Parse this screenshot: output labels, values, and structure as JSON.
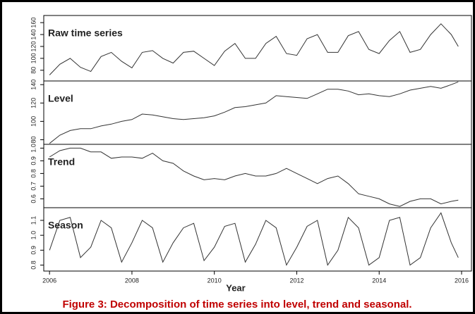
{
  "chart_data": [
    {
      "type": "line",
      "title": "Raw time series",
      "x": [
        2006,
        2006.25,
        2006.5,
        2006.75,
        2007,
        2007.25,
        2007.5,
        2007.75,
        2008,
        2008.25,
        2008.5,
        2008.75,
        2009,
        2009.25,
        2009.5,
        2009.75,
        2010,
        2010.25,
        2010.5,
        2010.75,
        2011,
        2011.25,
        2011.5,
        2011.75,
        2012,
        2012.25,
        2012.5,
        2012.75,
        2013,
        2013.25,
        2013.5,
        2013.75,
        2014,
        2014.25,
        2014.5,
        2014.75,
        2015,
        2015.25,
        2015.5,
        2015.75,
        2015.92
      ],
      "values": [
        72,
        90,
        100,
        85,
        78,
        103,
        110,
        95,
        84,
        110,
        113,
        100,
        92,
        110,
        112,
        100,
        88,
        112,
        125,
        100,
        100,
        125,
        137,
        108,
        105,
        133,
        140,
        110,
        110,
        138,
        145,
        115,
        108,
        130,
        145,
        110,
        115,
        140,
        158,
        140,
        120
      ],
      "color": "#333333",
      "xlim": [
        2005.86,
        2016.24
      ],
      "ylim": [
        62,
        172
      ],
      "yticks": [
        80,
        100,
        120,
        140,
        160
      ]
    },
    {
      "type": "line",
      "title": "Level",
      "x": [
        2006,
        2006.25,
        2006.5,
        2006.75,
        2007,
        2007.25,
        2007.5,
        2007.75,
        2008,
        2008.25,
        2008.5,
        2008.75,
        2009,
        2009.25,
        2009.5,
        2009.75,
        2010,
        2010.25,
        2010.5,
        2010.75,
        2011,
        2011.25,
        2011.5,
        2011.75,
        2012,
        2012.25,
        2012.5,
        2012.75,
        2013,
        2013.25,
        2013.5,
        2013.75,
        2014,
        2014.25,
        2014.5,
        2014.75,
        2015,
        2015.25,
        2015.5,
        2015.75,
        2015.92
      ],
      "values": [
        76,
        85,
        90,
        92,
        92,
        95,
        97,
        100,
        102,
        108,
        107,
        105,
        103,
        102,
        103,
        104,
        106,
        110,
        115,
        116,
        118,
        120,
        128,
        127,
        126,
        125,
        130,
        135,
        135,
        133,
        129,
        130,
        128,
        127,
        130,
        134,
        136,
        138,
        136,
        140,
        143
      ],
      "color": "#333333",
      "xlim": [
        2005.86,
        2016.24
      ],
      "ylim": [
        75,
        144
      ],
      "yticks": [
        80,
        100,
        120,
        140
      ]
    },
    {
      "type": "line",
      "title": "Trend",
      "x": [
        2006,
        2006.25,
        2006.5,
        2006.75,
        2007,
        2007.25,
        2007.5,
        2007.75,
        2008,
        2008.25,
        2008.5,
        2008.75,
        2009,
        2009.25,
        2009.5,
        2009.75,
        2010,
        2010.25,
        2010.5,
        2010.75,
        2011,
        2011.25,
        2011.5,
        2011.75,
        2012,
        2012.25,
        2012.5,
        2012.75,
        2013,
        2013.25,
        2013.5,
        2013.75,
        2014,
        2014.25,
        2014.5,
        2014.75,
        2015,
        2015.25,
        2015.5,
        2015.75,
        2015.92
      ],
      "values": [
        0.93,
        0.98,
        1.0,
        1.0,
        0.97,
        0.97,
        0.92,
        0.93,
        0.93,
        0.92,
        0.96,
        0.9,
        0.88,
        0.82,
        0.78,
        0.75,
        0.76,
        0.75,
        0.78,
        0.8,
        0.78,
        0.78,
        0.8,
        0.84,
        0.8,
        0.76,
        0.72,
        0.76,
        0.78,
        0.72,
        0.64,
        0.62,
        0.6,
        0.56,
        0.54,
        0.58,
        0.6,
        0.6,
        0.56,
        0.58,
        0.59
      ],
      "color": "#333333",
      "xlim": [
        2005.86,
        2016.24
      ],
      "ylim": [
        0.53,
        1.03
      ],
      "yticks": [
        0.6,
        0.7,
        0.8,
        0.9,
        {
          "value": 1,
          "label": "1.0"
        }
      ]
    },
    {
      "type": "line",
      "title": "Season",
      "x_label": "Year",
      "x": [
        2006,
        2006.25,
        2006.5,
        2006.75,
        2007,
        2007.25,
        2007.5,
        2007.75,
        2008,
        2008.25,
        2008.5,
        2008.75,
        2009,
        2009.25,
        2009.5,
        2009.75,
        2010,
        2010.25,
        2010.5,
        2010.75,
        2011,
        2011.25,
        2011.5,
        2011.75,
        2012,
        2012.25,
        2012.5,
        2012.75,
        2013,
        2013.25,
        2013.5,
        2013.75,
        2014,
        2014.25,
        2014.5,
        2014.75,
        2015,
        2015.25,
        2015.5,
        2015.75,
        2015.92
      ],
      "values": [
        0.9,
        1.1,
        1.12,
        0.85,
        0.92,
        1.1,
        1.05,
        0.82,
        0.95,
        1.1,
        1.05,
        0.82,
        0.95,
        1.05,
        1.08,
        0.83,
        0.92,
        1.06,
        1.08,
        0.82,
        0.94,
        1.1,
        1.05,
        0.8,
        0.92,
        1.06,
        1.1,
        0.8,
        0.9,
        1.12,
        1.05,
        0.8,
        0.85,
        1.1,
        1.12,
        0.8,
        0.85,
        1.05,
        1.15,
        0.95,
        0.85
      ],
      "color": "#333333",
      "xlim": [
        2005.86,
        2016.24
      ],
      "ylim": [
        0.76,
        1.185
      ],
      "yticks": [
        0.8,
        0.9,
        {
          "value": 1,
          "label": "1.0"
        },
        1.1
      ],
      "xticks": [
        2006,
        2008,
        2010,
        2012,
        2014,
        2016
      ]
    }
  ],
  "caption": "Figure 3: Decomposition of time series into level, trend and seasonal."
}
